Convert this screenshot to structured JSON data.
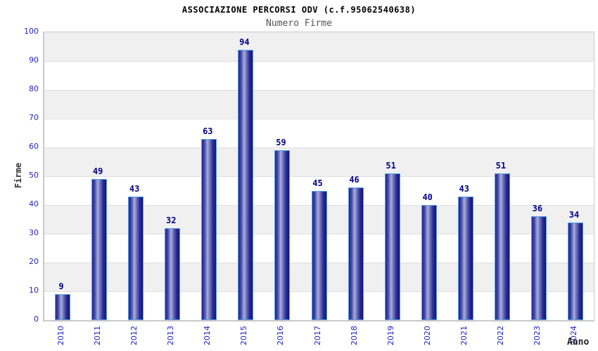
{
  "header": {
    "title": "ASSOCIAZIONE PERCORSI ODV (c.f.95062540638)",
    "subtitle": "Numero Firme"
  },
  "chart_data": {
    "type": "bar",
    "title": "ASSOCIAZIONE PERCORSI ODV (c.f.95062540638)",
    "subtitle": "Numero Firme",
    "xlabel": "Anno",
    "ylabel": "Firme",
    "categories": [
      "2010",
      "2011",
      "2012",
      "2013",
      "2014",
      "2015",
      "2016",
      "2017",
      "2018",
      "2019",
      "2020",
      "2021",
      "2022",
      "2023",
      "2024"
    ],
    "values": [
      9,
      49,
      43,
      32,
      63,
      94,
      59,
      45,
      46,
      51,
      40,
      43,
      51,
      36,
      34
    ],
    "ylim": [
      0,
      100
    ],
    "ytick_step": 10,
    "yticks": [
      0,
      10,
      20,
      30,
      40,
      50,
      60,
      70,
      80,
      90,
      100
    ],
    "legend_position": "none",
    "grid": "horizontal-alternating-bands",
    "value_labels": "above-bars"
  },
  "colors": {
    "bar_dark": "#14147a",
    "bar_light": "#a9afd9",
    "bar_outline": "#55a0e8",
    "tick_label": "#2323c8",
    "value_label": "#00008b",
    "band_gray": "#f0f0f0",
    "grid_line": "#e0e0e0",
    "plot_border": "#c9c9c9",
    "title_color": "#000000",
    "subtitle_color": "#555555"
  }
}
